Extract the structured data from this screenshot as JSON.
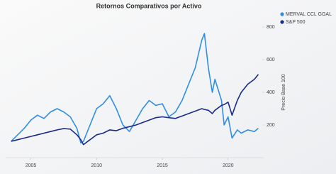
{
  "chart_data": {
    "type": "line",
    "title": "Retornos Comparativos por Activo",
    "y_label": "Precio Base 100",
    "xlim": [
      2003.3,
      2022.6
    ],
    "xticks": [
      2005,
      2010,
      2015,
      2020
    ],
    "ylim": [
      0,
      800
    ],
    "yticks": [
      200,
      400,
      600,
      800
    ],
    "y_axis_side": "right",
    "legend": "upper right",
    "x": [
      2003.5,
      2004,
      2004.5,
      2005,
      2005.5,
      2006,
      2006.5,
      2007,
      2007.5,
      2008,
      2008.5,
      2008.8,
      2009,
      2009.5,
      2010,
      2010.5,
      2011,
      2011.5,
      2012,
      2012.5,
      2013,
      2013.5,
      2014,
      2014.5,
      2015,
      2015.5,
      2016,
      2016.5,
      2017,
      2017.5,
      2018,
      2018.2,
      2018.5,
      2018.8,
      2019,
      2019.5,
      2019.7,
      2020,
      2020.3,
      2020.7,
      2021,
      2021.5,
      2022,
      2022.3
    ],
    "series": [
      {
        "name": "MERVAL CCL GGAL",
        "color": "#2f8de4",
        "values": [
          100,
          140,
          180,
          230,
          260,
          240,
          280,
          300,
          280,
          250,
          180,
          90,
          100,
          200,
          300,
          330,
          380,
          300,
          200,
          160,
          230,
          300,
          350,
          320,
          330,
          250,
          280,
          350,
          450,
          550,
          720,
          760,
          550,
          400,
          480,
          350,
          200,
          250,
          120,
          170,
          150,
          170,
          160,
          180
        ]
      },
      {
        "name": "S&P 500",
        "color": "#1b2a8a",
        "values": [
          100,
          110,
          120,
          130,
          140,
          150,
          160,
          170,
          178,
          175,
          140,
          110,
          80,
          110,
          140,
          150,
          170,
          165,
          180,
          190,
          200,
          215,
          230,
          245,
          250,
          245,
          240,
          255,
          270,
          285,
          300,
          295,
          290,
          270,
          290,
          320,
          325,
          340,
          260,
          350,
          400,
          450,
          480,
          510
        ]
      }
    ]
  }
}
